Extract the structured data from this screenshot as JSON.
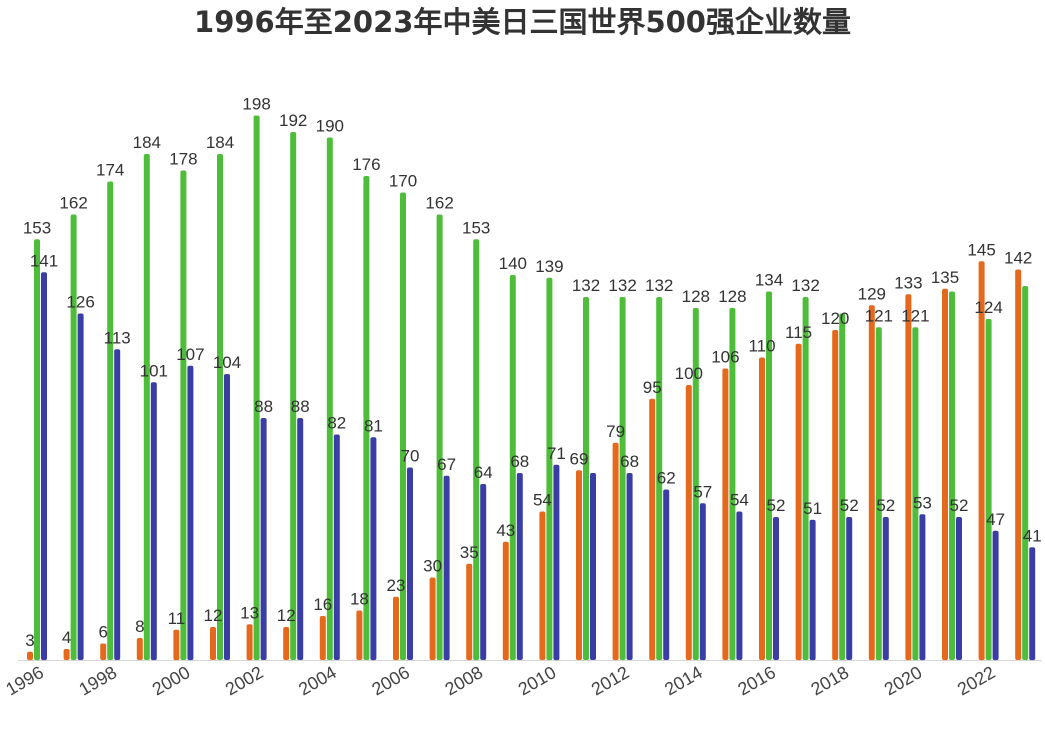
{
  "chart_data": {
    "type": "bar",
    "title": "1996年至2023年中美日三国世界500强企业数量",
    "ylim": [
      0,
      200
    ],
    "grid": false,
    "x": [
      1996,
      1997,
      1998,
      1999,
      2000,
      2001,
      2002,
      2003,
      2004,
      2005,
      2006,
      2007,
      2008,
      2009,
      2010,
      2011,
      2012,
      2013,
      2014,
      2015,
      2016,
      2017,
      2018,
      2019,
      2020,
      2021,
      2022,
      2023
    ],
    "xticks": [
      1996,
      1998,
      2000,
      2002,
      2004,
      2006,
      2008,
      2010,
      2012,
      2014,
      2016,
      2018,
      2020,
      2022
    ],
    "series": [
      {
        "color": "#E5691C",
        "values": [
          3,
          4,
          6,
          8,
          11,
          12,
          13,
          12,
          16,
          18,
          23,
          30,
          35,
          43,
          54,
          69,
          79,
          95,
          100,
          106,
          110,
          115,
          120,
          129,
          133,
          135,
          145,
          142
        ]
      },
      {
        "color": "#4DBD3A",
        "values": [
          153,
          162,
          174,
          184,
          178,
          184,
          198,
          192,
          190,
          176,
          170,
          162,
          153,
          140,
          139,
          132,
          132,
          132,
          128,
          128,
          134,
          132,
          126,
          121,
          121,
          134,
          124,
          136
        ]
      },
      {
        "color": "#3A3DA6",
        "values": [
          141,
          126,
          113,
          101,
          107,
          104,
          88,
          88,
          82,
          81,
          70,
          67,
          64,
          68,
          71,
          68,
          68,
          62,
          57,
          54,
          52,
          51,
          52,
          52,
          53,
          52,
          47,
          41
        ]
      }
    ]
  }
}
